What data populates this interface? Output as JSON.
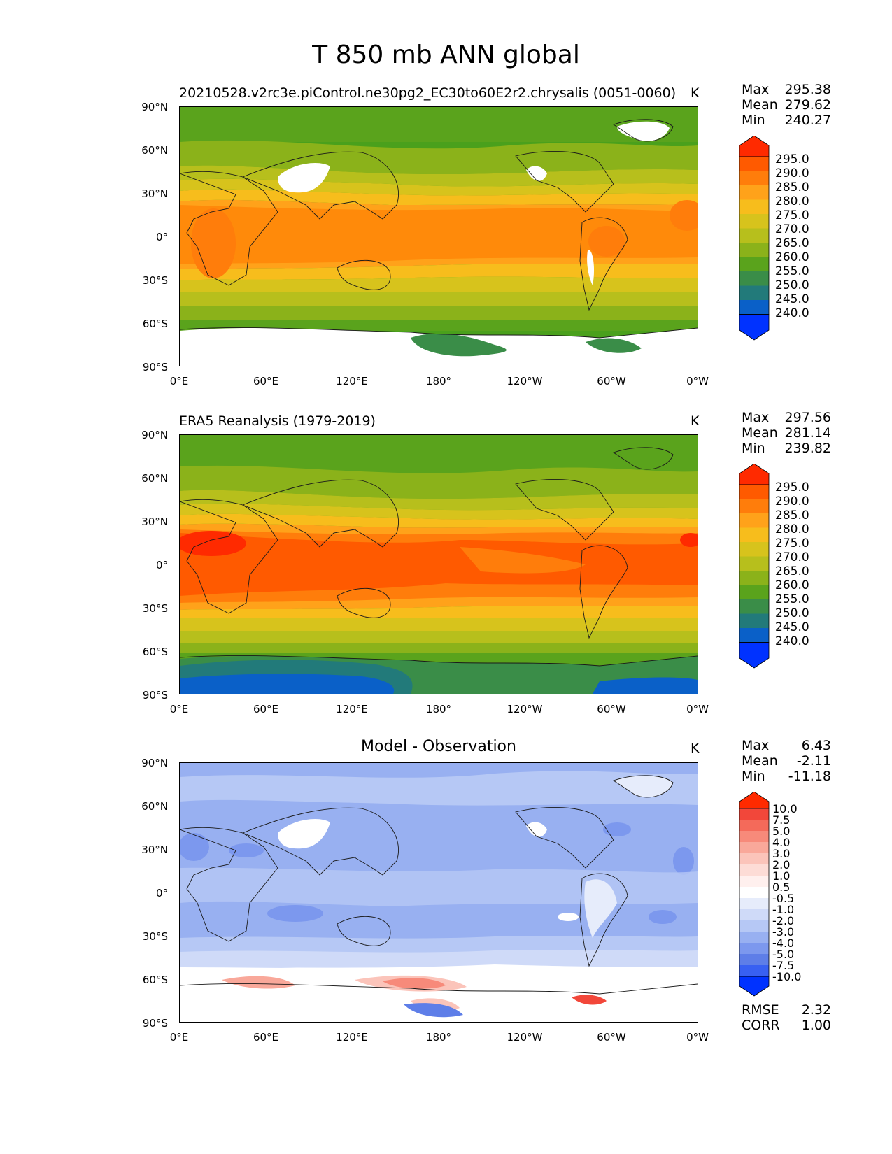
{
  "figure": {
    "title": "T 850 mb ANN global"
  },
  "axes": {
    "y_ticks": [
      "90°N",
      "60°N",
      "30°N",
      "0°",
      "30°S",
      "60°S",
      "90°S"
    ],
    "x_ticks": [
      "0°E",
      "60°E",
      "120°E",
      "180°",
      "120°W",
      "60°W",
      "0°W"
    ]
  },
  "panels": [
    {
      "id": "model",
      "title": "20210528.v2rc3e.piControl.ne30pg2_EC30to60E2r2.chrysalis (0051-0060)",
      "units": "K",
      "stats": {
        "max_label": "Max",
        "max": "295.38",
        "mean_label": "Mean",
        "mean": "279.62",
        "min_label": "Min",
        "min": "240.27"
      },
      "colorbar_levels": [
        "295.0",
        "290.0",
        "285.0",
        "280.0",
        "275.0",
        "270.0",
        "265.0",
        "260.0",
        "255.0",
        "250.0",
        "245.0",
        "240.0"
      ],
      "colorbar_colors": [
        "#ff2a00",
        "#ff5a00",
        "#ff7d0b",
        "#ffa21a",
        "#f7bd1c",
        "#d7c31c",
        "#b7bf1c",
        "#8bb21a",
        "#5aa31c",
        "#3a8d48",
        "#227a7a",
        "#0a60c8",
        "#0032ff"
      ]
    },
    {
      "id": "obs",
      "title": "ERA5 Reanalysis (1979-2019)",
      "units": "K",
      "stats": {
        "max_label": "Max",
        "max": "297.56",
        "mean_label": "Mean",
        "mean": "281.14",
        "min_label": "Min",
        "min": "239.82"
      },
      "colorbar_levels": [
        "295.0",
        "290.0",
        "285.0",
        "280.0",
        "275.0",
        "270.0",
        "265.0",
        "260.0",
        "255.0",
        "250.0",
        "245.0",
        "240.0"
      ],
      "colorbar_colors": [
        "#ff2a00",
        "#ff5a00",
        "#ff7d0b",
        "#ffa21a",
        "#f7bd1c",
        "#d7c31c",
        "#b7bf1c",
        "#8bb21a",
        "#5aa31c",
        "#3a8d48",
        "#227a7a",
        "#0a60c8",
        "#0032ff"
      ]
    },
    {
      "id": "diff",
      "title": "Model - Observation",
      "units": "K",
      "stats": {
        "max_label": "Max",
        "max": "6.43",
        "mean_label": "Mean",
        "mean": "-2.11",
        "min_label": "Min",
        "min": "-11.18"
      },
      "colorbar_levels": [
        "10.0",
        "7.5",
        "5.0",
        "4.0",
        "3.0",
        "2.0",
        "1.0",
        "0.5",
        "-0.5",
        "-1.0",
        "-2.0",
        "-3.0",
        "-4.0",
        "-5.0",
        "-7.5",
        "-10.0"
      ],
      "colorbar_colors": [
        "#ff2a00",
        "#f2473a",
        "#f46a5a",
        "#f78a7a",
        "#f9a89a",
        "#fbc4ba",
        "#fddcd6",
        "#fff0ee",
        "#ffffff",
        "#e6ecfb",
        "#cfdaf8",
        "#b6c8f5",
        "#98b0f1",
        "#7c98ee",
        "#5e7ee8",
        "#3860f2",
        "#0032ff"
      ],
      "metrics": {
        "rmse_label": "RMSE",
        "rmse": "2.32",
        "corr_label": "CORR",
        "corr": "1.00"
      }
    }
  ]
}
